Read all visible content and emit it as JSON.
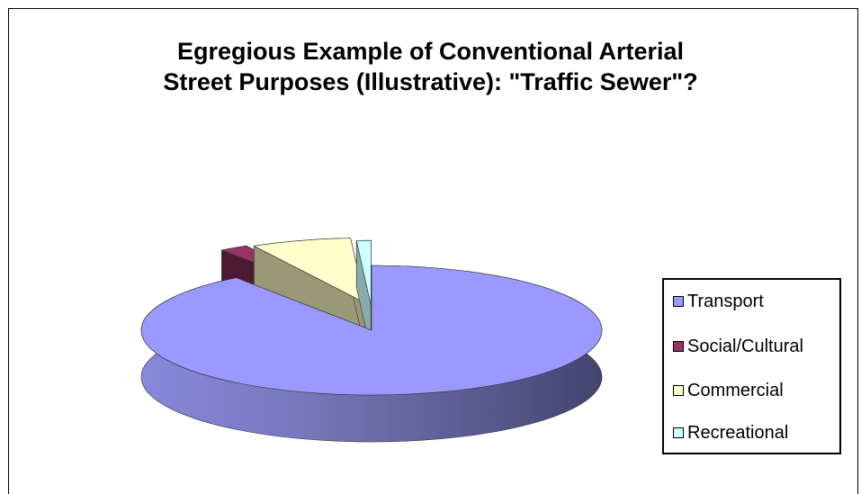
{
  "chart_data": {
    "type": "pie",
    "style": "3d-exploded",
    "title_lines": [
      "Egregious Example of Conventional Arterial",
      "Street Purposes (Illustrative): \"Traffic Sewer\"?"
    ],
    "series": [
      {
        "name": "Transport",
        "value": 90,
        "color": "#9999ff",
        "side_color": "#4a4a7a"
      },
      {
        "name": "Social/Cultural",
        "value": 2,
        "color": "#993366",
        "side_color": "#4d1a33"
      },
      {
        "name": "Commercial",
        "value": 7,
        "color": "#ffffcc",
        "side_color": "#999977"
      },
      {
        "name": "Recreational",
        "value": 1,
        "color": "#ccffff",
        "side_color": "#88aaaa"
      }
    ],
    "legend_position": "right"
  }
}
